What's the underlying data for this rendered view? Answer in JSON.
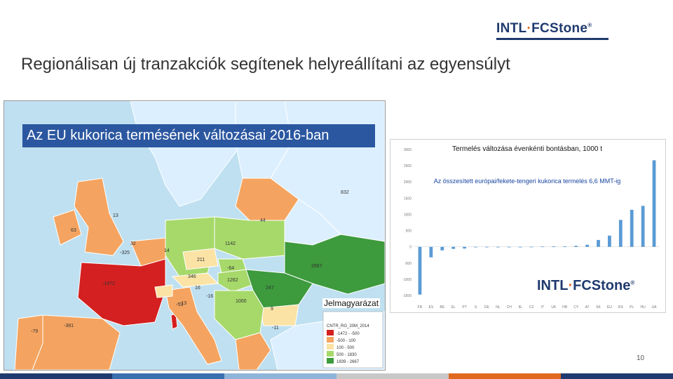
{
  "header": {
    "logo_part1": "INTL",
    "logo_sep": "·",
    "logo_part2": "FCStone",
    "logo_mark": "®"
  },
  "slide": {
    "title": "Regionálisan új tranzakciók segítenek helyreállítani az egyensúlyt",
    "page_number": "10"
  },
  "map": {
    "title": "Az EU kukorica termésének változásai 2016-ban",
    "legend_title": "Jelmagyarázat",
    "legend_field": "CNTR_RG_20M_2014",
    "legend_items": [
      {
        "label": "-1472 - -500",
        "color": "#d42020"
      },
      {
        "label": "-500 - 100",
        "color": "#f4a460"
      },
      {
        "label": "100 - 500",
        "color": "#fbe3a5"
      },
      {
        "label": "500 - 1830",
        "color": "#a6d96a"
      },
      {
        "label": "1839 - 2667",
        "color": "#3d9a3d"
      }
    ],
    "region_labels": [
      "832",
      "44",
      "63",
      "13",
      "32",
      "-325",
      "14",
      "1142",
      "211",
      "-64",
      "2667",
      "-1472",
      "346",
      "1262",
      "16",
      "-16",
      "247",
      "-13",
      "1000",
      "-53",
      "9",
      "-381",
      "-79",
      "-11"
    ],
    "colors": {
      "sea": "#bfe0f0",
      "non_eu": "#dcefff",
      "red": "#d42020",
      "orange": "#f4a460",
      "light": "#fbe3a5",
      "lightgreen": "#a6d96a",
      "green": "#3d9a3d",
      "border": "#ffffff"
    }
  },
  "chart_data": {
    "type": "bar",
    "title": "Termelés változása évenkénti bontásban, 1000 t",
    "annotation": "Az összesített európai/fekete-tengeri kukorica termelés 6,6 MMT-ig",
    "categories": [
      "FR",
      "ES",
      "BE",
      "EL",
      "PT",
      "S",
      "DE",
      "NL",
      "CH",
      "IE",
      "CZ",
      "IT",
      "UK",
      "HR",
      "CY",
      "AT",
      "SK",
      "EU",
      "RS",
      "PL",
      "HU",
      "UA"
    ],
    "values": [
      -1472,
      -325,
      -110,
      -64,
      -53,
      -16,
      -13,
      -11,
      -9,
      -5,
      3,
      9,
      14,
      16,
      32,
      63,
      211,
      346,
      830,
      1142,
      1262,
      2667
    ],
    "ylim": [
      -1500,
      3000
    ],
    "yticks": [
      -1500,
      -1000,
      -500,
      0,
      500,
      1000,
      1500,
      2000,
      2500,
      3000
    ],
    "ytick_labels": [
      "-1500",
      "-1000",
      "-500",
      "0",
      "500",
      "1000",
      "1500",
      "2000",
      "2500",
      "3000"
    ],
    "bar_color": "#5b9bd5",
    "grid": false,
    "legend": "none"
  },
  "footer": {
    "colors": [
      "#1f3a6e",
      "#3a6fb0",
      "#8fb4d9",
      "#c8c8c8",
      "#e0691f",
      "#1f3a6e"
    ]
  }
}
